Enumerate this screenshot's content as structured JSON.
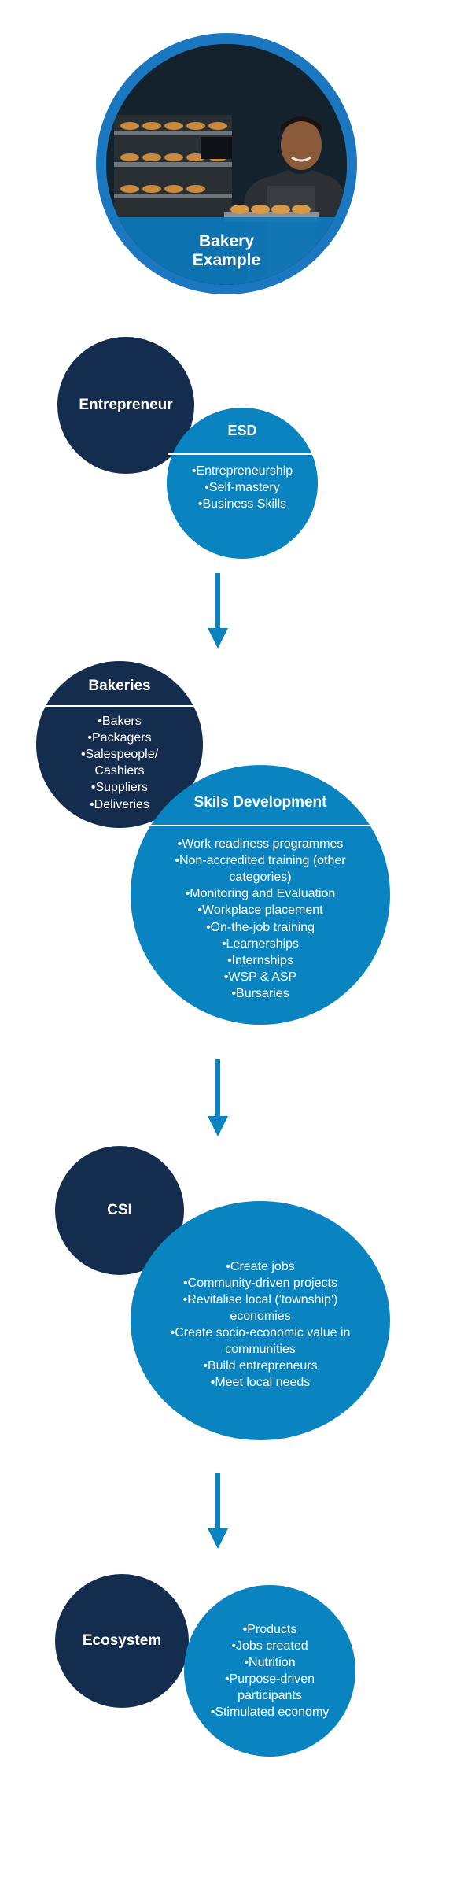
{
  "hero": {
    "line1": "Bakery",
    "line2": "Example"
  },
  "section1": {
    "navy_title": "Entrepreneur",
    "blue_title": "ESD",
    "blue_items": [
      "Entrepreneurship",
      "Self-mastery",
      "Business Skills"
    ]
  },
  "section2": {
    "navy_title": "Bakeries",
    "navy_items": [
      "Bakers",
      "Packagers",
      "Salespeople/ Cashiers",
      "Suppliers",
      "Deliveries"
    ],
    "blue_title": "Skils Development",
    "blue_items": [
      "Work readiness programmes",
      "Non-accredited training (other categories)",
      "Monitoring and Evaluation",
      "Workplace placement",
      "On-the-job training",
      "Learnerships",
      "Internships",
      "WSP & ASP",
      "Bursaries"
    ]
  },
  "section3": {
    "navy_title": "CSI",
    "blue_items": [
      "Create jobs",
      "Community-driven projects",
      "Revitalise local ('township') economies",
      "Create socio-economic value in communities",
      "Build entrepreneurs",
      "Meet local needs"
    ]
  },
  "section4": {
    "navy_title": "Ecosystem",
    "blue_items": [
      "Products",
      "Jobs created",
      "Nutrition",
      "Purpose-driven participants",
      "Stimulated economy"
    ]
  },
  "colors": {
    "navy": "#142d4e",
    "blue": "#0a84c1",
    "hero_ring": "#1a77c0"
  }
}
